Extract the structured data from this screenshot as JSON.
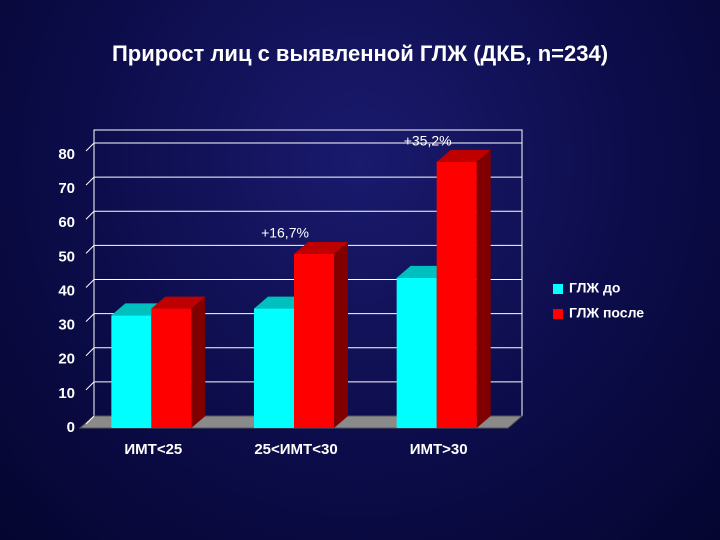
{
  "chart_data": {
    "type": "bar3d",
    "title": "Прирост лиц с выявленной ГЛЖ (ДКБ, n=234)",
    "categories": [
      "ИМТ<25",
      "25<ИМТ<30",
      "ИМТ>30"
    ],
    "series": [
      {
        "name": "ГЛЖ до",
        "color": "#00ffff",
        "values": [
          33,
          35,
          44
        ]
      },
      {
        "name": "ГЛЖ после",
        "color": "#ff0000",
        "values": [
          35,
          51,
          78
        ]
      }
    ],
    "annotations": [
      "+16,7%",
      "+35,2%"
    ],
    "ylim": [
      0,
      80
    ],
    "yticks": [
      0,
      10,
      20,
      30,
      40,
      50,
      60,
      70,
      80
    ],
    "grid": true,
    "legend": "right"
  }
}
